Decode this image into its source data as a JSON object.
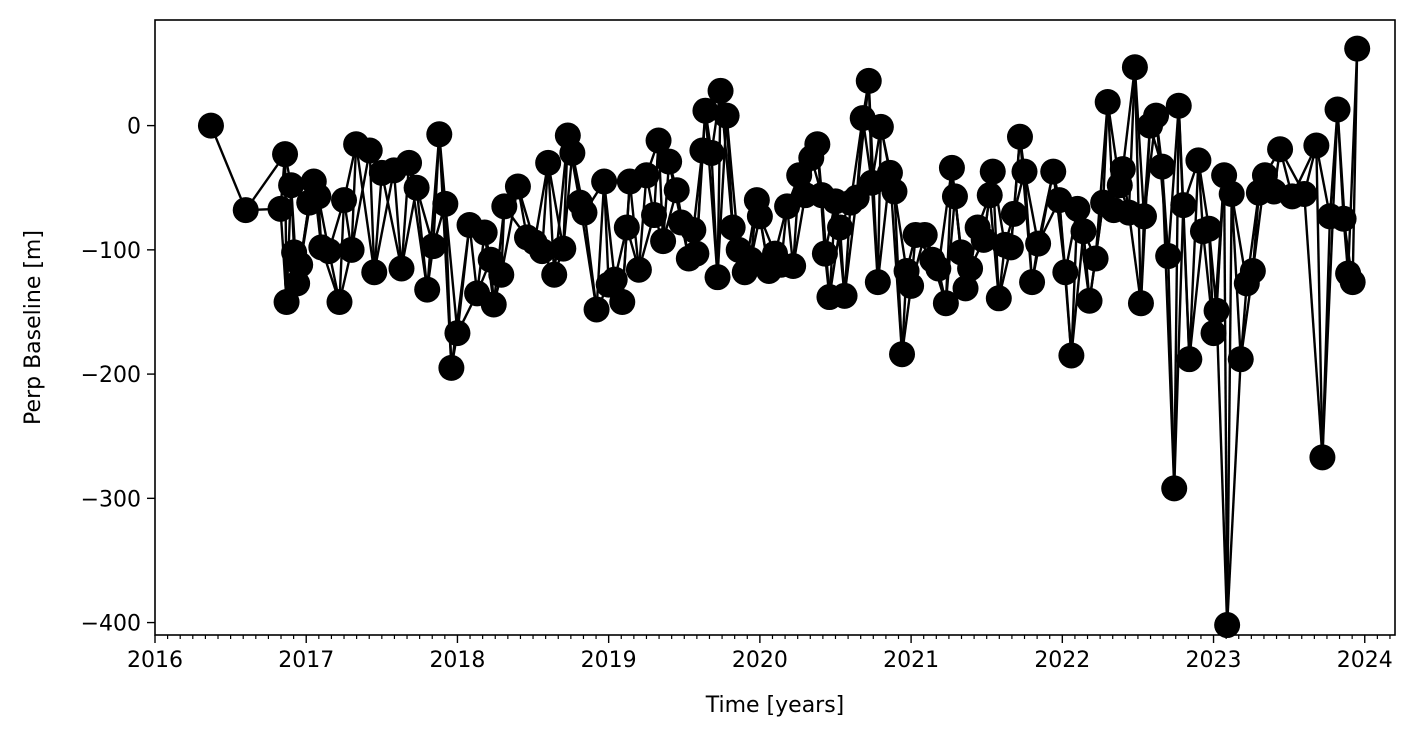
{
  "chart_data": {
    "type": "scatter",
    "title": "",
    "xlabel": "Time [years]",
    "ylabel": "Perp Baseline [m]",
    "xlim": [
      2016.0,
      2024.2
    ],
    "ylim": [
      -410,
      85
    ],
    "xticks": [
      2016,
      2017,
      2018,
      2019,
      2020,
      2021,
      2022,
      2023,
      2024
    ],
    "xtick_labels": [
      "2016",
      "2017",
      "2018",
      "2019",
      "2020",
      "2021",
      "2022",
      "2023",
      "2024"
    ],
    "yticks": [
      0,
      -100,
      -200,
      -300,
      -400
    ],
    "ytick_labels": [
      "0",
      "−100",
      "−200",
      "−300",
      "−400"
    ],
    "grid": false,
    "legend": "none",
    "marker_color": "#000000",
    "line_color": "#000000",
    "nodes": [
      [
        2016.37,
        0
      ],
      [
        2016.6,
        -68
      ],
      [
        2016.83,
        -67
      ],
      [
        2016.86,
        -23
      ],
      [
        2016.87,
        -142
      ],
      [
        2016.9,
        -48
      ],
      [
        2016.92,
        -102
      ],
      [
        2016.94,
        -127
      ],
      [
        2016.96,
        -112
      ],
      [
        2017.02,
        -62
      ],
      [
        2017.05,
        -45
      ],
      [
        2017.08,
        -57
      ],
      [
        2017.1,
        -98
      ],
      [
        2017.15,
        -101
      ],
      [
        2017.22,
        -142
      ],
      [
        2017.25,
        -60
      ],
      [
        2017.3,
        -100
      ],
      [
        2017.33,
        -15
      ],
      [
        2017.42,
        -20
      ],
      [
        2017.45,
        -118
      ],
      [
        2017.5,
        -38
      ],
      [
        2017.58,
        -36
      ],
      [
        2017.63,
        -115
      ],
      [
        2017.68,
        -30
      ],
      [
        2017.73,
        -50
      ],
      [
        2017.8,
        -132
      ],
      [
        2017.84,
        -97
      ],
      [
        2017.88,
        -7
      ],
      [
        2017.92,
        -63
      ],
      [
        2017.96,
        -195
      ],
      [
        2018.0,
        -167
      ],
      [
        2018.08,
        -80
      ],
      [
        2018.13,
        -135
      ],
      [
        2018.18,
        -86
      ],
      [
        2018.22,
        -108
      ],
      [
        2018.24,
        -144
      ],
      [
        2018.29,
        -120
      ],
      [
        2018.31,
        -65
      ],
      [
        2018.4,
        -49
      ],
      [
        2018.46,
        -90
      ],
      [
        2018.51,
        -94
      ],
      [
        2018.56,
        -101
      ],
      [
        2018.6,
        -30
      ],
      [
        2018.64,
        -120
      ],
      [
        2018.7,
        -99
      ],
      [
        2018.73,
        -8
      ],
      [
        2018.76,
        -22
      ],
      [
        2018.81,
        -62
      ],
      [
        2018.84,
        -70
      ],
      [
        2018.92,
        -148
      ],
      [
        2018.97,
        -45
      ],
      [
        2019.0,
        -128
      ],
      [
        2019.04,
        -124
      ],
      [
        2019.09,
        -142
      ],
      [
        2019.12,
        -82
      ],
      [
        2019.14,
        -45
      ],
      [
        2019.2,
        -116
      ],
      [
        2019.25,
        -40
      ],
      [
        2019.3,
        -72
      ],
      [
        2019.33,
        -12
      ],
      [
        2019.36,
        -93
      ],
      [
        2019.4,
        -29
      ],
      [
        2019.45,
        -52
      ],
      [
        2019.48,
        -78
      ],
      [
        2019.53,
        -107
      ],
      [
        2019.56,
        -84
      ],
      [
        2019.58,
        -103
      ],
      [
        2019.62,
        -20
      ],
      [
        2019.64,
        12
      ],
      [
        2019.68,
        -22
      ],
      [
        2019.72,
        -122
      ],
      [
        2019.74,
        28
      ],
      [
        2019.78,
        8
      ],
      [
        2019.82,
        -82
      ],
      [
        2019.86,
        -100
      ],
      [
        2019.9,
        -118
      ],
      [
        2019.94,
        -108
      ],
      [
        2019.98,
        -60
      ],
      [
        2020.0,
        -73
      ],
      [
        2020.06,
        -117
      ],
      [
        2020.1,
        -103
      ],
      [
        2020.14,
        -112
      ],
      [
        2020.18,
        -65
      ],
      [
        2020.22,
        -113
      ],
      [
        2020.26,
        -40
      ],
      [
        2020.3,
        -56
      ],
      [
        2020.34,
        -26
      ],
      [
        2020.38,
        -15
      ],
      [
        2020.41,
        -56
      ],
      [
        2020.43,
        -103
      ],
      [
        2020.46,
        -138
      ],
      [
        2020.5,
        -61
      ],
      [
        2020.53,
        -82
      ],
      [
        2020.56,
        -137
      ],
      [
        2020.6,
        -62
      ],
      [
        2020.64,
        -58
      ],
      [
        2020.68,
        6
      ],
      [
        2020.72,
        36
      ],
      [
        2020.74,
        -46
      ],
      [
        2020.78,
        -126
      ],
      [
        2020.8,
        -1
      ],
      [
        2020.86,
        -38
      ],
      [
        2020.89,
        -53
      ],
      [
        2020.94,
        -184
      ],
      [
        2020.97,
        -117
      ],
      [
        2021.0,
        -129
      ],
      [
        2021.03,
        -88
      ],
      [
        2021.09,
        -88
      ],
      [
        2021.14,
        -108
      ],
      [
        2021.18,
        -115
      ],
      [
        2021.23,
        -143
      ],
      [
        2021.27,
        -34
      ],
      [
        2021.29,
        -57
      ],
      [
        2021.33,
        -102
      ],
      [
        2021.36,
        -131
      ],
      [
        2021.39,
        -115
      ],
      [
        2021.44,
        -82
      ],
      [
        2021.48,
        -92
      ],
      [
        2021.52,
        -56
      ],
      [
        2021.54,
        -37
      ],
      [
        2021.58,
        -139
      ],
      [
        2021.62,
        -96
      ],
      [
        2021.66,
        -98
      ],
      [
        2021.68,
        -71
      ],
      [
        2021.72,
        -9
      ],
      [
        2021.75,
        -37
      ],
      [
        2021.8,
        -126
      ],
      [
        2021.84,
        -95
      ],
      [
        2021.94,
        -37
      ],
      [
        2021.98,
        -60
      ],
      [
        2022.02,
        -118
      ],
      [
        2022.06,
        -185
      ],
      [
        2022.1,
        -67
      ],
      [
        2022.14,
        -85
      ],
      [
        2022.18,
        -141
      ],
      [
        2022.22,
        -107
      ],
      [
        2022.27,
        -62
      ],
      [
        2022.3,
        19
      ],
      [
        2022.34,
        -68
      ],
      [
        2022.38,
        -48
      ],
      [
        2022.4,
        -35
      ],
      [
        2022.44,
        -70
      ],
      [
        2022.48,
        47
      ],
      [
        2022.52,
        -143
      ],
      [
        2022.54,
        -73
      ],
      [
        2022.58,
        0
      ],
      [
        2022.62,
        8
      ],
      [
        2022.66,
        -33
      ],
      [
        2022.7,
        -105
      ],
      [
        2022.74,
        -292
      ],
      [
        2022.77,
        16
      ],
      [
        2022.8,
        -64
      ],
      [
        2022.84,
        -188
      ],
      [
        2022.9,
        -28
      ],
      [
        2022.93,
        -85
      ],
      [
        2022.97,
        -83
      ],
      [
        2023.0,
        -167
      ],
      [
        2023.02,
        -149
      ],
      [
        2023.07,
        -40
      ],
      [
        2023.09,
        -402
      ],
      [
        2023.12,
        -55
      ],
      [
        2023.18,
        -188
      ],
      [
        2023.22,
        -127
      ],
      [
        2023.26,
        -117
      ],
      [
        2023.3,
        -54
      ],
      [
        2023.34,
        -40
      ],
      [
        2023.4,
        -53
      ],
      [
        2023.44,
        -19
      ],
      [
        2023.52,
        -57
      ],
      [
        2023.6,
        -55
      ],
      [
        2023.68,
        -16
      ],
      [
        2023.72,
        -267
      ],
      [
        2023.77,
        -73
      ],
      [
        2023.82,
        13
      ],
      [
        2023.86,
        -75
      ],
      [
        2023.89,
        -119
      ],
      [
        2023.92,
        -126
      ],
      [
        2023.95,
        62
      ]
    ]
  }
}
